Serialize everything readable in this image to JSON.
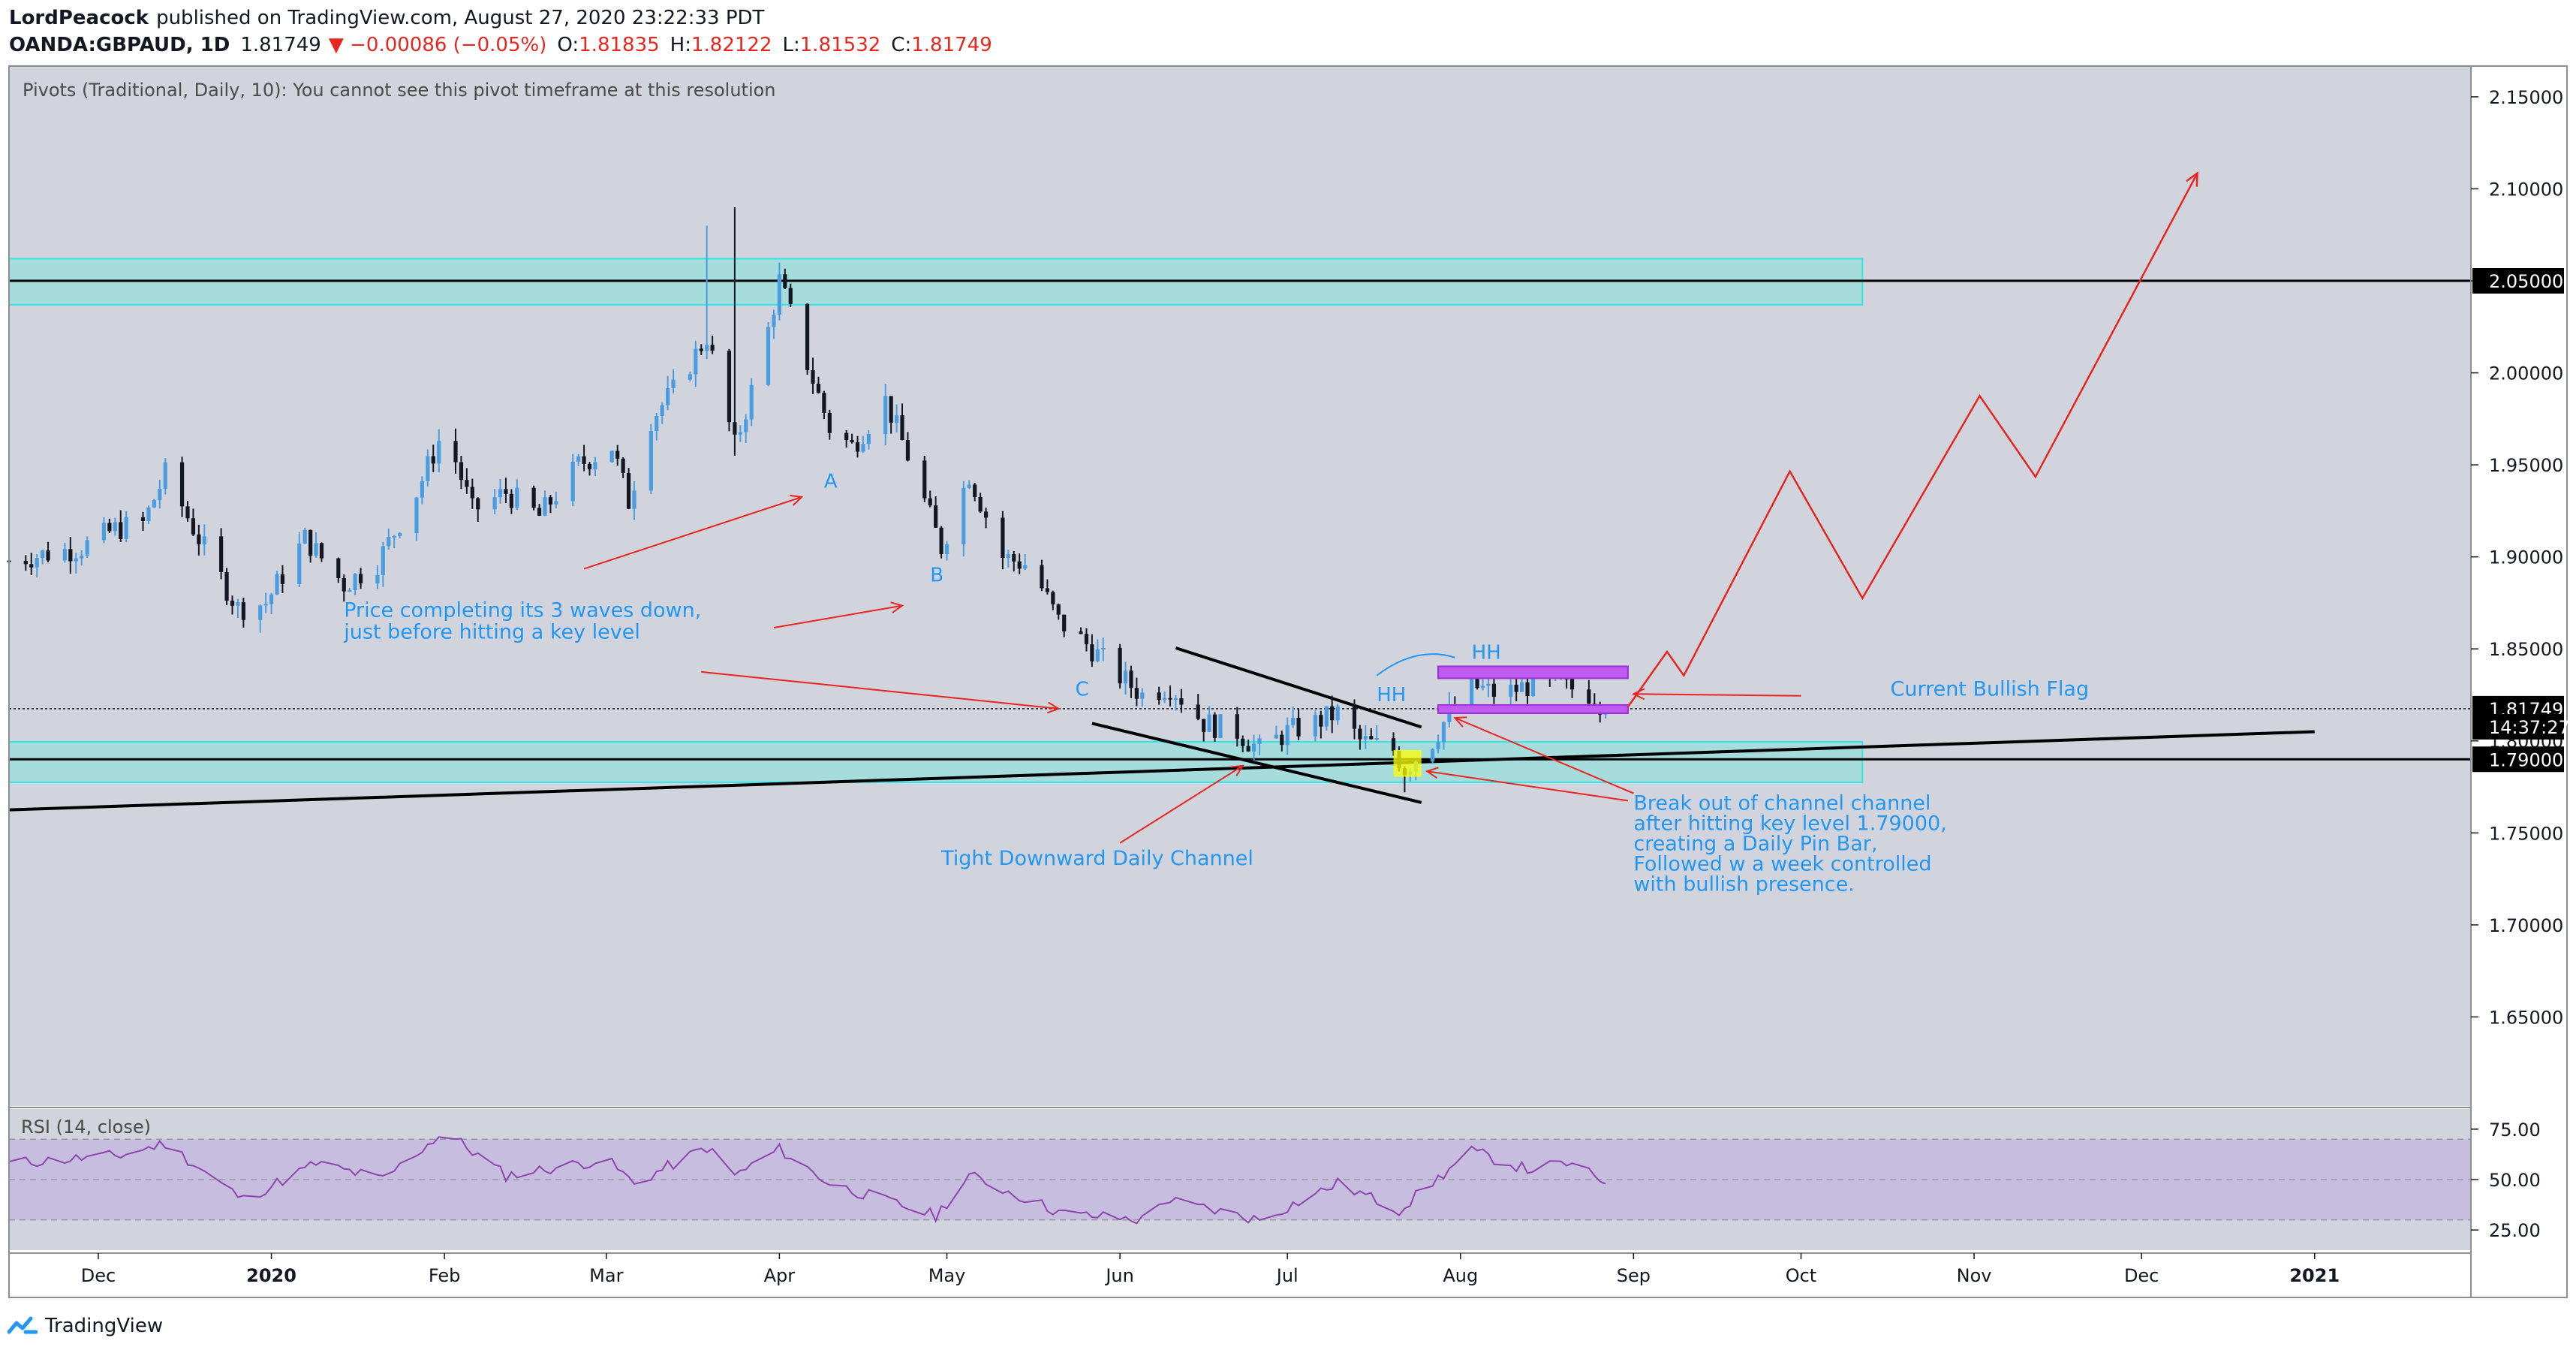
{
  "header": {
    "author": "LordPeacock",
    "published_text": "published on TradingView.com, August 27, 2020 23:22:33 PDT",
    "symbol": "OANDA:GBPAUD, 1D",
    "last": "1.81749",
    "change": "▼ −0.00086 (−0.05%)",
    "o_label": "O:",
    "o_value": "1.81835",
    "h_label": "H:",
    "h_value": "1.82122",
    "l_label": "L:",
    "l_value": "1.81532",
    "c_label": "C:",
    "c_value": "1.81749"
  },
  "pivots_note": "Pivots (Traditional, Daily, 10): You cannot see this pivot timeframe at this resolution",
  "rsi_label": "RSI (14, close)",
  "brand": {
    "name": "TradingView",
    "icon": "tradingview-logo-icon"
  },
  "colors": {
    "up": "#4a9de0",
    "down": "#131722",
    "background": "#d1d4dc",
    "zone_fill": "#a6dcdc",
    "zone_border": "#32e6e6",
    "annotation_text": "#2196f3",
    "arrow": "#e8251e",
    "flag": "#c05bf0",
    "rsi_line": "#8e44ad",
    "rsi_band": "#c4b8e0"
  },
  "chart_data": {
    "type": "candlestick",
    "symbol": "OANDA:GBPAUD",
    "interval": "1D",
    "x_ticks": [
      "Dec",
      "2020",
      "Feb",
      "Mar",
      "Apr",
      "May",
      "Jun",
      "Jul",
      "Aug",
      "Sep",
      "Oct",
      "Nov",
      "Dec",
      "2021"
    ],
    "x_tick_dates": [
      "2019-12-01",
      "2020-01-01",
      "2020-02-01",
      "2020-03-01",
      "2020-04-01",
      "2020-05-01",
      "2020-06-01",
      "2020-07-01",
      "2020-08-01",
      "2020-09-01",
      "2020-10-01",
      "2020-11-01",
      "2020-12-01",
      "2021-01-01"
    ],
    "x_range": [
      "2019-11-15",
      "2021-01-29"
    ],
    "y_ticks": [
      "2.15000",
      "2.10000",
      "2.05000",
      "2.00000",
      "1.95000",
      "1.90000",
      "1.85000",
      "1.80000",
      "1.75000",
      "1.70000",
      "1.65000"
    ],
    "ylim": [
      1.6016,
      2.1667
    ],
    "price_labels": [
      {
        "text": "2.05000",
        "value": 2.05,
        "style": "black"
      },
      {
        "text": "1.81749",
        "value": 1.81749,
        "style": "black"
      },
      {
        "text": "14:37:27",
        "value": 1.80769,
        "style": "black"
      },
      {
        "text": "1.79000",
        "value": 1.79,
        "style": "black"
      }
    ],
    "anchors": [
      {
        "date": "2019-11-15",
        "close": 1.898
      },
      {
        "date": "2019-11-28",
        "close": 1.905
      },
      {
        "date": "2019-12-04",
        "close": 1.915
      },
      {
        "date": "2019-12-09",
        "close": 1.918
      },
      {
        "date": "2019-12-13",
        "close": 1.945
      },
      {
        "date": "2019-12-19",
        "close": 1.91
      },
      {
        "date": "2019-12-26",
        "close": 1.872
      },
      {
        "date": "2019-12-31",
        "close": 1.875
      },
      {
        "date": "2020-01-07",
        "close": 1.91
      },
      {
        "date": "2020-01-14",
        "close": 1.885
      },
      {
        "date": "2020-01-20",
        "close": 1.897
      },
      {
        "date": "2020-01-27",
        "close": 1.935
      },
      {
        "date": "2020-02-01",
        "close": 1.97
      },
      {
        "date": "2020-02-06",
        "close": 1.925
      },
      {
        "date": "2020-02-12",
        "close": 1.935
      },
      {
        "date": "2020-02-18",
        "close": 1.922
      },
      {
        "date": "2020-02-25",
        "close": 1.95
      },
      {
        "date": "2020-03-02",
        "close": 1.96
      },
      {
        "date": "2020-03-05",
        "close": 1.93
      },
      {
        "date": "2020-03-09",
        "close": 1.975
      },
      {
        "date": "2020-03-13",
        "close": 1.99
      },
      {
        "date": "2020-03-19",
        "close": 2.02
      },
      {
        "date": "2020-03-24",
        "close": 1.96
      },
      {
        "date": "2020-03-29",
        "close": 2.01
      },
      {
        "date": "2020-04-01",
        "close": 2.05
      },
      {
        "date": "2020-04-06",
        "close": 2.005
      },
      {
        "date": "2020-04-10",
        "close": 1.97
      },
      {
        "date": "2020-04-14",
        "close": 1.96
      },
      {
        "date": "2020-04-20",
        "close": 1.985
      },
      {
        "date": "2020-04-24",
        "close": 1.955
      },
      {
        "date": "2020-04-30",
        "close": 1.905
      },
      {
        "date": "2020-05-05",
        "close": 1.945
      },
      {
        "date": "2020-05-11",
        "close": 1.9
      },
      {
        "date": "2020-05-16",
        "close": 1.895
      },
      {
        "date": "2020-05-21",
        "close": 1.865
      },
      {
        "date": "2020-05-27",
        "close": 1.85
      },
      {
        "date": "2020-06-01",
        "close": 1.835
      },
      {
        "date": "2020-06-05",
        "close": 1.825
      },
      {
        "date": "2020-06-10",
        "close": 1.83
      },
      {
        "date": "2020-06-16",
        "close": 1.81
      },
      {
        "date": "2020-06-22",
        "close": 1.805
      },
      {
        "date": "2020-06-26",
        "close": 1.795
      },
      {
        "date": "2020-07-01",
        "close": 1.805
      },
      {
        "date": "2020-07-06",
        "close": 1.81
      },
      {
        "date": "2020-07-10",
        "close": 1.815
      },
      {
        "date": "2020-07-14",
        "close": 1.8
      },
      {
        "date": "2020-07-20",
        "close": 1.795
      },
      {
        "date": "2020-07-22",
        "close": 1.785
      },
      {
        "date": "2020-07-27",
        "close": 1.8
      },
      {
        "date": "2020-07-30",
        "close": 1.815
      },
      {
        "date": "2020-08-03",
        "close": 1.83
      },
      {
        "date": "2020-08-08",
        "close": 1.825
      },
      {
        "date": "2020-08-13",
        "close": 1.83
      },
      {
        "date": "2020-08-19",
        "close": 1.83
      },
      {
        "date": "2020-08-25",
        "close": 1.825
      },
      {
        "date": "2020-08-27",
        "close": 1.8175
      }
    ],
    "spikes": [
      {
        "date": "2020-03-19",
        "high": 2.08
      },
      {
        "date": "2020-03-24",
        "high": 2.09,
        "low": 1.955
      },
      {
        "date": "2020-04-01",
        "high": 2.06
      },
      {
        "date": "2020-07-22",
        "low": 1.772
      }
    ],
    "zones": [
      {
        "name": "resistance-zone",
        "y_top": 2.062,
        "y_bottom": 2.037,
        "from": "2019-11-15",
        "to": "2020-10-12"
      },
      {
        "name": "support-zone",
        "y_top": 1.7995,
        "y_bottom": 1.7775,
        "from": "2019-11-15",
        "to": "2020-10-12"
      }
    ],
    "horizontal_lines": [
      2.05,
      1.79
    ],
    "current_price": 1.81749,
    "trendlines": [
      {
        "name": "rising-trendline",
        "from": [
          "2019-11-15",
          1.7625
        ],
        "to": [
          "2021-01-01",
          1.805
        ]
      },
      {
        "name": "channel-upper-line",
        "from": [
          "2020-06-11",
          1.8505
        ],
        "to": [
          "2020-07-25",
          1.8075
        ]
      },
      {
        "name": "channel-lower-line",
        "from": [
          "2020-05-27",
          1.8095
        ],
        "to": [
          "2020-07-25",
          1.7665
        ]
      }
    ],
    "flag_boxes": [
      {
        "name": "flag-top-box",
        "from": "2020-07-28",
        "to": "2020-08-31",
        "y_top": 1.8405,
        "y_bottom": 1.834
      },
      {
        "name": "flag-bottom-box",
        "from": "2020-07-28",
        "to": "2020-08-31",
        "y_top": 1.8195,
        "y_bottom": 1.815
      }
    ],
    "pin_bar_highlight": {
      "from": "2020-07-20",
      "to": "2020-07-25",
      "y_top": 1.795,
      "y_bottom": 1.7805
    },
    "projection_path": [
      [
        "2020-08-31",
        1.8185
      ],
      [
        "2020-09-07",
        1.8485
      ],
      [
        "2020-09-10",
        1.8355
      ],
      [
        "2020-09-29",
        1.9465
      ],
      [
        "2020-10-12",
        1.8775
      ],
      [
        "2020-11-02",
        1.9875
      ],
      [
        "2020-11-12",
        1.9435
      ],
      [
        "2020-12-11",
        2.1085
      ]
    ],
    "annotations": [
      {
        "name": "wave-label-a",
        "text": "A",
        "date": "2020-04-09",
        "y": 1.9375
      },
      {
        "name": "wave-label-b",
        "text": "B",
        "date": "2020-04-28",
        "y": 1.8865
      },
      {
        "name": "wave-label-c",
        "text": "C",
        "date": "2020-05-24",
        "y": 1.8245
      },
      {
        "name": "hh-label-1",
        "text": "HH",
        "date": "2020-07-17",
        "y": 1.8215
      },
      {
        "name": "hh-label-2",
        "text": "HH",
        "date": "2020-08-03",
        "y": 1.8445
      },
      {
        "name": "waves-note-line-1",
        "text": "Price completing its 3 waves down,",
        "date": "2020-01-14",
        "y": 1.8675
      },
      {
        "name": "waves-note-line-2",
        "text": "just before hitting a key level",
        "date": "2020-01-14",
        "y": 1.8555
      },
      {
        "name": "channel-note",
        "text": "Tight Downward Daily Channel",
        "date": "2020-04-30",
        "y": 1.7325
      },
      {
        "name": "flag-note",
        "text": "Current Bullish Flag",
        "date": "2020-10-17",
        "y": 1.8245
      },
      {
        "name": "breakout-note-line-1",
        "text": "Break out of channel channel",
        "date": "2020-09-01",
        "y": 1.7625
      },
      {
        "name": "breakout-note-line-2",
        "text": "after hitting key level 1.79000,",
        "date": "2020-09-01",
        "y": 1.7515
      },
      {
        "name": "breakout-note-line-3",
        "text": "creating a Daily Pin Bar,",
        "date": "2020-09-01",
        "y": 1.7405
      },
      {
        "name": "breakout-note-line-4",
        "text": "Followed w a week controlled",
        "date": "2020-09-01",
        "y": 1.7295
      },
      {
        "name": "breakout-note-line-5",
        "text": "with bullish presence.",
        "date": "2020-09-01",
        "y": 1.7185
      }
    ],
    "red_arrows": [
      {
        "name": "arrow-to-a",
        "from": [
          "2020-02-26",
          1.8935
        ],
        "to": [
          "2020-04-05",
          1.9325
        ]
      },
      {
        "name": "arrow-to-b",
        "from": [
          "2020-03-31",
          1.8615
        ],
        "to": [
          "2020-04-23",
          1.8735
        ]
      },
      {
        "name": "arrow-to-c",
        "from": [
          "2020-03-18",
          1.8375
        ],
        "to": [
          "2020-05-21",
          1.8175
        ]
      },
      {
        "name": "arrow-to-channel",
        "from": [
          "2020-06-01",
          1.7445
        ],
        "to": [
          "2020-06-23",
          1.7865
        ]
      },
      {
        "name": "arrow-to-pin-bar",
        "from": [
          "2020-08-31",
          1.7675
        ],
        "to": [
          "2020-07-26",
          1.7835
        ]
      },
      {
        "name": "arrow-to-breakout",
        "from": [
          "2020-09-01",
          1.7715
        ],
        "to": [
          "2020-07-31",
          1.8125
        ]
      },
      {
        "name": "arrow-to-flag",
        "from": [
          "2020-10-01",
          1.8245
        ],
        "to": [
          "2020-09-01",
          1.8255
        ]
      }
    ],
    "rsi": {
      "name": "RSI (14, close)",
      "ticks": [
        "75.00",
        "50.00",
        "25.00"
      ],
      "ylim": [
        15,
        85
      ],
      "band": [
        30,
        70
      ],
      "anchors": [
        {
          "date": "2019-11-15",
          "value": 58
        },
        {
          "date": "2019-12-05",
          "value": 62
        },
        {
          "date": "2019-12-13",
          "value": 68
        },
        {
          "date": "2019-12-27",
          "value": 40
        },
        {
          "date": "2020-01-09",
          "value": 58
        },
        {
          "date": "2020-01-21",
          "value": 50
        },
        {
          "date": "2020-02-01",
          "value": 74
        },
        {
          "date": "2020-02-12",
          "value": 52
        },
        {
          "date": "2020-03-01",
          "value": 60
        },
        {
          "date": "2020-03-06",
          "value": 48
        },
        {
          "date": "2020-03-19",
          "value": 66
        },
        {
          "date": "2020-03-24",
          "value": 52
        },
        {
          "date": "2020-04-01",
          "value": 65
        },
        {
          "date": "2020-04-10",
          "value": 48
        },
        {
          "date": "2020-04-29",
          "value": 32
        },
        {
          "date": "2020-05-05",
          "value": 52
        },
        {
          "date": "2020-05-22",
          "value": 33
        },
        {
          "date": "2020-06-05",
          "value": 30
        },
        {
          "date": "2020-06-09",
          "value": 40
        },
        {
          "date": "2020-06-26",
          "value": 30
        },
        {
          "date": "2020-07-10",
          "value": 48
        },
        {
          "date": "2020-07-21",
          "value": 35
        },
        {
          "date": "2020-07-30",
          "value": 55
        },
        {
          "date": "2020-08-03",
          "value": 64
        },
        {
          "date": "2020-08-13",
          "value": 55
        },
        {
          "date": "2020-08-20",
          "value": 58
        },
        {
          "date": "2020-08-27",
          "value": 49
        }
      ]
    }
  }
}
